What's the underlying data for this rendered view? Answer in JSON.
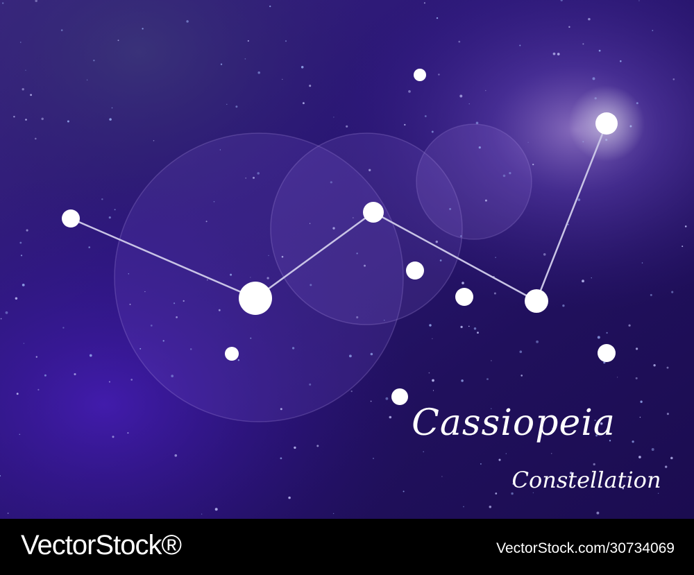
{
  "artwork": {
    "title": "Cassiopeia",
    "subtitle": "Constellation"
  },
  "footer": {
    "brand": "VectorStock®",
    "image_id": "VectorStock.com/30734069"
  },
  "colors": {
    "sky_base": "#2a1470",
    "sky_light": "#4a2aa8",
    "star": "#ffffff",
    "line": "#c9c4e6",
    "footer_bg": "#000000"
  }
}
